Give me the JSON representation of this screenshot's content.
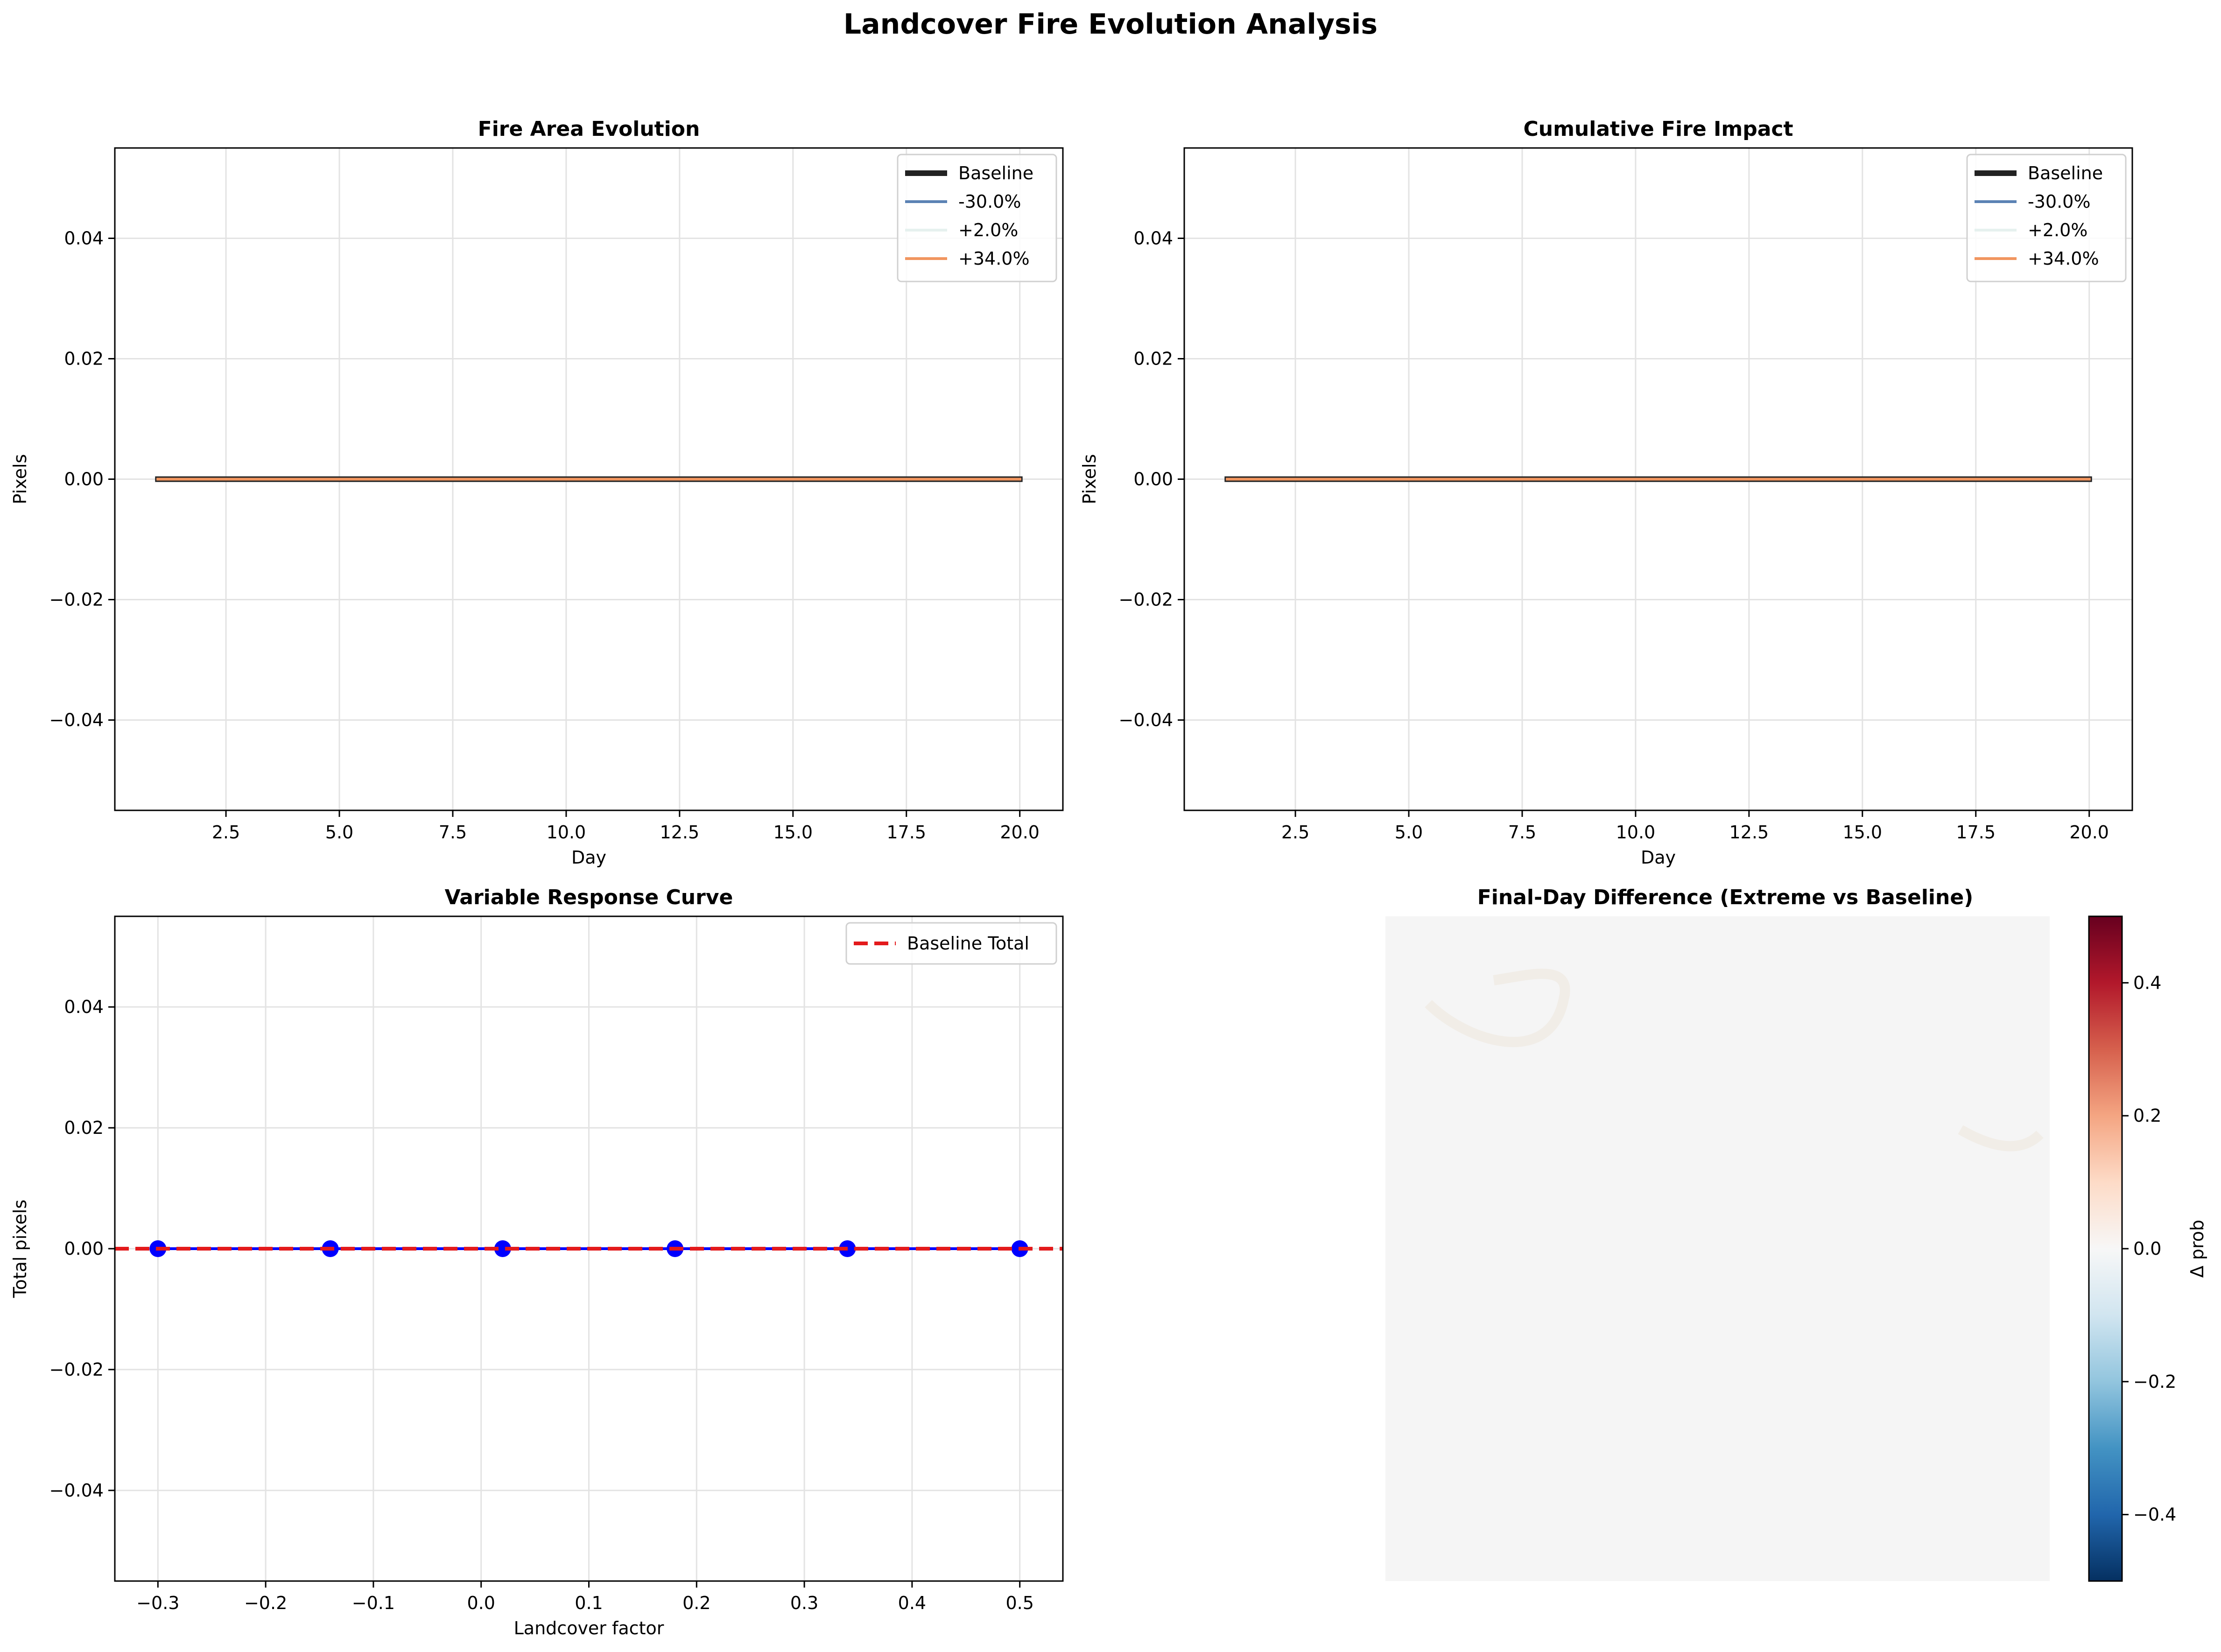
{
  "figure_title": "Landcover Fire Evolution Analysis",
  "colors": {
    "baseline": "#222222",
    "minus30": "#5b82b4",
    "plus2": "#e6f1ef",
    "plus34": "#f1955f",
    "response_points": "#0000ff",
    "response_line": "#0000ff",
    "baseline_total": "#e31a1c",
    "grid": "#e3e3e3",
    "heatmap_fill": "#f5f5f5"
  },
  "chart_data": [
    {
      "id": "fire_area",
      "type": "line",
      "title": "Fire Area Evolution",
      "xlabel": "Day",
      "ylabel": "Pixels",
      "xlim": [
        0.05,
        20.95
      ],
      "ylim": [
        -0.055,
        0.055
      ],
      "xticks": [
        2.5,
        5.0,
        7.5,
        10.0,
        12.5,
        15.0,
        17.5,
        20.0
      ],
      "xtick_labels": [
        "2.5",
        "5.0",
        "7.5",
        "10.0",
        "12.5",
        "15.0",
        "17.5",
        "20.0"
      ],
      "yticks": [
        -0.04,
        -0.02,
        0.0,
        0.02,
        0.04
      ],
      "ytick_labels": [
        "−0.04",
        "−0.02",
        "0.00",
        "0.02",
        "0.04"
      ],
      "grid": true,
      "legend": "top-right",
      "series": [
        {
          "name": "Baseline",
          "x": [
            1,
            20
          ],
          "y": [
            0,
            0
          ],
          "color_key": "baseline",
          "width": 12
        },
        {
          "name": "-30.0%",
          "x": [
            1,
            20
          ],
          "y": [
            0,
            0
          ],
          "color_key": "minus30",
          "width": 6
        },
        {
          "name": "+2.0%",
          "x": [
            1,
            20
          ],
          "y": [
            0,
            0
          ],
          "color_key": "plus2",
          "width": 6
        },
        {
          "name": "+34.0%",
          "x": [
            1,
            20
          ],
          "y": [
            0,
            0
          ],
          "color_key": "plus34",
          "width": 6
        }
      ]
    },
    {
      "id": "cumulative",
      "type": "line",
      "title": "Cumulative Fire Impact",
      "xlabel": "Day",
      "ylabel": "Pixels",
      "xlim": [
        0.05,
        20.95
      ],
      "ylim": [
        -0.055,
        0.055
      ],
      "xticks": [
        2.5,
        5.0,
        7.5,
        10.0,
        12.5,
        15.0,
        17.5,
        20.0
      ],
      "xtick_labels": [
        "2.5",
        "5.0",
        "7.5",
        "10.0",
        "12.5",
        "15.0",
        "17.5",
        "20.0"
      ],
      "yticks": [
        -0.04,
        -0.02,
        0.0,
        0.02,
        0.04
      ],
      "ytick_labels": [
        "−0.04",
        "−0.02",
        "0.00",
        "0.02",
        "0.04"
      ],
      "grid": true,
      "legend": "top-right",
      "series": [
        {
          "name": "Baseline",
          "x": [
            1,
            20
          ],
          "y": [
            0,
            0
          ],
          "color_key": "baseline",
          "width": 12
        },
        {
          "name": "-30.0%",
          "x": [
            1,
            20
          ],
          "y": [
            0,
            0
          ],
          "color_key": "minus30",
          "width": 6
        },
        {
          "name": "+2.0%",
          "x": [
            1,
            20
          ],
          "y": [
            0,
            0
          ],
          "color_key": "plus2",
          "width": 6
        },
        {
          "name": "+34.0%",
          "x": [
            1,
            20
          ],
          "y": [
            0,
            0
          ],
          "color_key": "plus34",
          "width": 6
        }
      ]
    },
    {
      "id": "response",
      "type": "scatter",
      "title": "Variable Response Curve",
      "xlabel": "Landcover factor",
      "ylabel": "Total pixels",
      "xlim": [
        -0.34,
        0.54
      ],
      "ylim": [
        -0.055,
        0.055
      ],
      "xticks": [
        -0.3,
        -0.2,
        -0.1,
        0.0,
        0.1,
        0.2,
        0.3,
        0.4,
        0.5
      ],
      "xtick_labels": [
        "−0.3",
        "−0.2",
        "−0.1",
        "0.0",
        "0.1",
        "0.2",
        "0.3",
        "0.4",
        "0.5"
      ],
      "yticks": [
        -0.04,
        -0.02,
        0.0,
        0.02,
        0.04
      ],
      "ytick_labels": [
        "−0.04",
        "−0.02",
        "0.00",
        "0.02",
        "0.04"
      ],
      "grid": true,
      "legend": "top-right",
      "x": [
        -0.3,
        -0.14,
        0.02,
        0.18,
        0.34,
        0.5
      ],
      "y": [
        0,
        0,
        0,
        0,
        0,
        0
      ],
      "reference": {
        "name": "Baseline Total",
        "y": 0
      }
    },
    {
      "id": "heatmap",
      "type": "heatmap",
      "title": "Final-Day Difference (Extreme vs Baseline)",
      "colorbar_label": "Δ prob",
      "clim": [
        -0.5,
        0.5
      ],
      "colorbar_ticks": [
        -0.4,
        -0.2,
        0.0,
        0.2,
        0.4
      ],
      "colorbar_tick_labels": [
        "−0.4",
        "−0.2",
        "0.0",
        "0.2",
        "0.4"
      ],
      "values": "all approximately 0"
    }
  ]
}
